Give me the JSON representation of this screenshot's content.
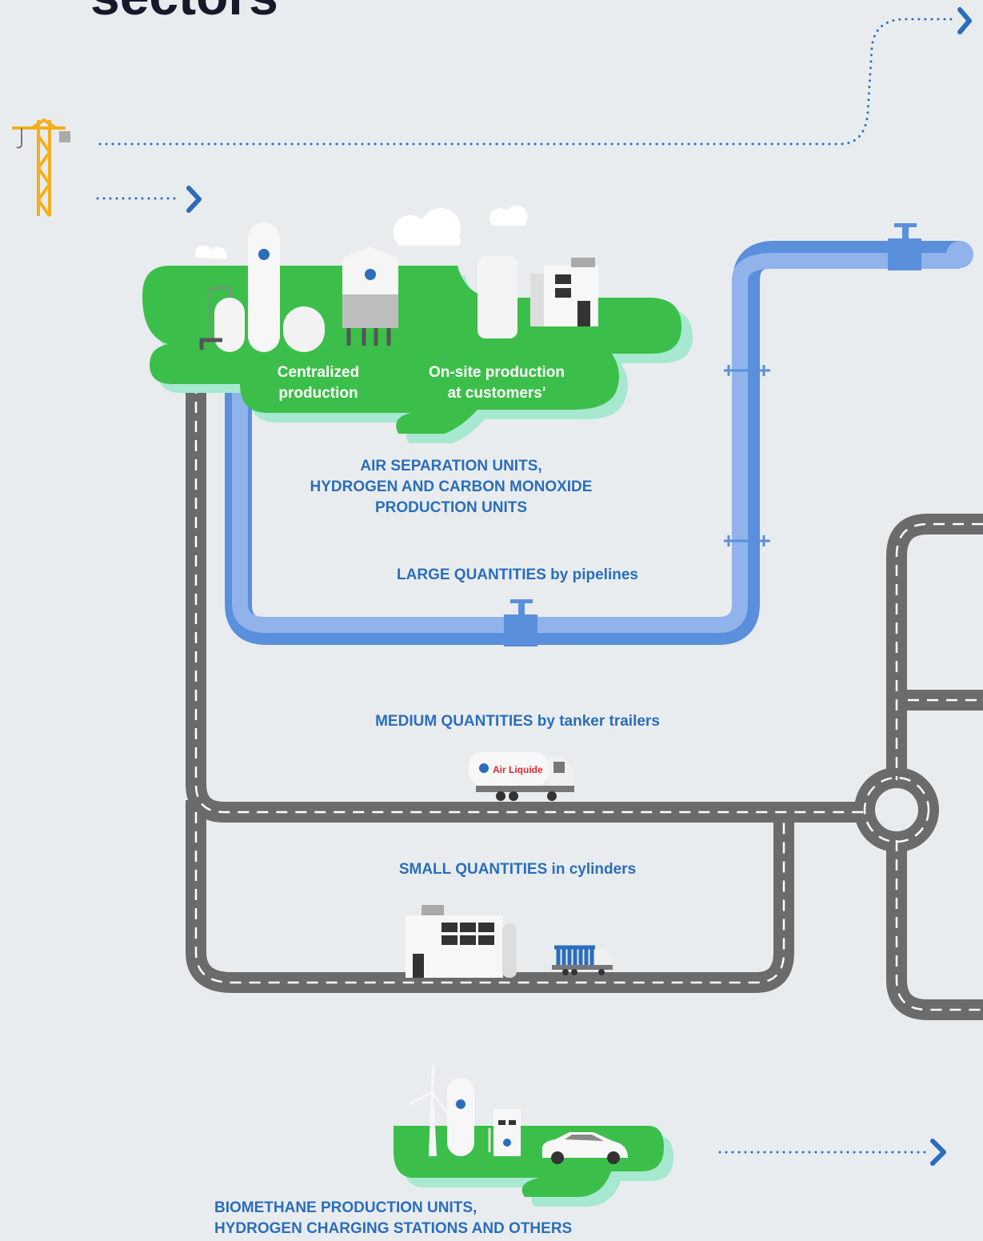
{
  "title": "sectors",
  "production": {
    "centralized": [
      "Centralized",
      "production"
    ],
    "on_site": [
      "On-site production",
      "at customers'"
    ],
    "units": [
      "AIR SEPARATION UNITS,",
      "HYDROGEN AND CARBON MONOXIDE",
      "PRODUCTION UNITS"
    ]
  },
  "modes": [
    {
      "quantity": "LARGE QUANTITIES",
      "means": "by pipelines"
    },
    {
      "quantity": "MEDIUM QUANTITIES",
      "means": "by tanker trailers"
    },
    {
      "quantity": "SMALL QUANTITIES",
      "means": "in cylinders"
    }
  ],
  "truck_brand": "Air Liquide",
  "others": [
    "BIOMETHANE PRODUCTION UNITS,",
    "HYDROGEN CHARGING STATIONS AND OTHERS"
  ]
}
